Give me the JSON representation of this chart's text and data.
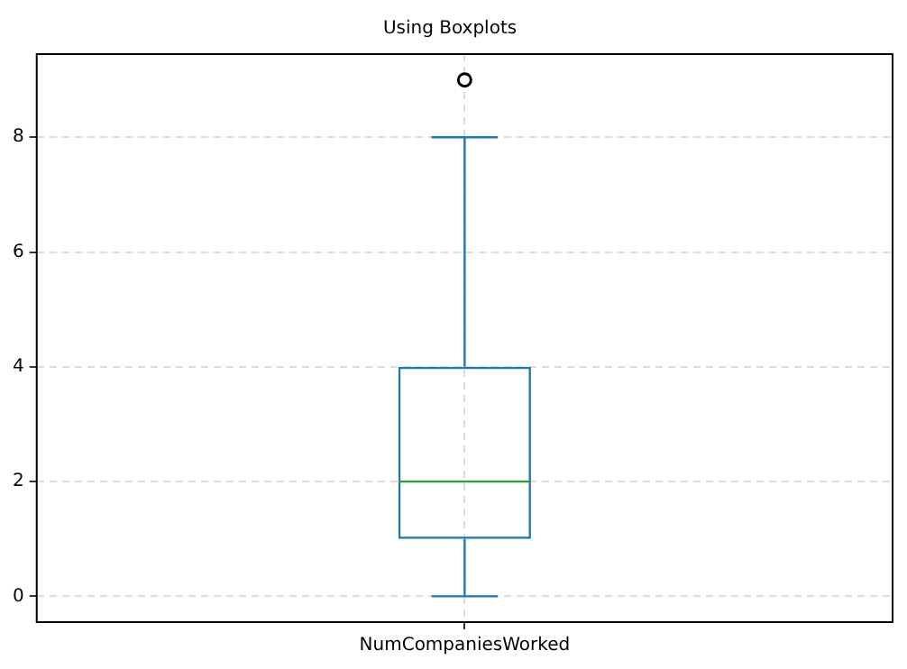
{
  "chart_data": {
    "type": "box",
    "title": "Using Boxplots",
    "categories": [
      "NumCompaniesWorked"
    ],
    "boxes": [
      {
        "low": 0,
        "q1": 1,
        "median": 2,
        "q3": 4,
        "high": 8,
        "outliers": [
          9
        ]
      }
    ],
    "color": "#1f77b4",
    "ylim": [
      -0.45,
      9.45
    ],
    "yticks": [
      0,
      2,
      4,
      6,
      8
    ],
    "grid": true,
    "legend": false
  }
}
